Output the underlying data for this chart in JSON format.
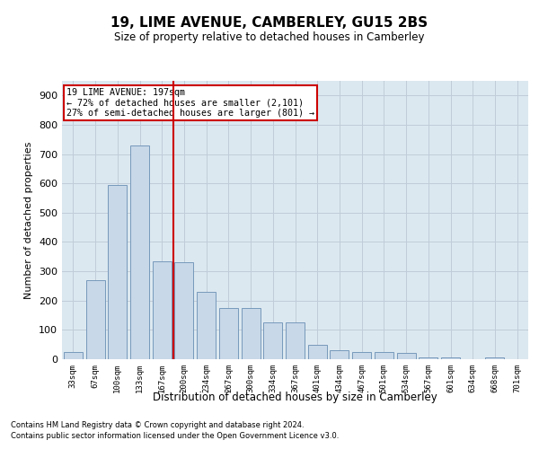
{
  "title": "19, LIME AVENUE, CAMBERLEY, GU15 2BS",
  "subtitle": "Size of property relative to detached houses in Camberley",
  "xlabel": "Distribution of detached houses by size in Camberley",
  "ylabel": "Number of detached properties",
  "categories": [
    "33sqm",
    "67sqm",
    "100sqm",
    "133sqm",
    "167sqm",
    "200sqm",
    "234sqm",
    "267sqm",
    "300sqm",
    "334sqm",
    "367sqm",
    "401sqm",
    "434sqm",
    "467sqm",
    "501sqm",
    "534sqm",
    "567sqm",
    "601sqm",
    "634sqm",
    "668sqm",
    "701sqm"
  ],
  "values": [
    25,
    270,
    595,
    730,
    335,
    330,
    230,
    175,
    175,
    125,
    125,
    50,
    30,
    25,
    25,
    20,
    5,
    5,
    0,
    5,
    0
  ],
  "bar_color": "#c8d8e8",
  "bar_edge_color": "#7799bb",
  "red_line_x": 4.5,
  "annotation_line1": "19 LIME AVENUE: 197sqm",
  "annotation_line2": "← 72% of detached houses are smaller (2,101)",
  "annotation_line3": "27% of semi-detached houses are larger (801) →",
  "annotation_box_color": "#cc0000",
  "ylim": [
    0,
    950
  ],
  "yticks": [
    0,
    100,
    200,
    300,
    400,
    500,
    600,
    700,
    800,
    900
  ],
  "grid_color": "#c0ccd8",
  "bg_color": "#dce8f0",
  "footnote1": "Contains HM Land Registry data © Crown copyright and database right 2024.",
  "footnote2": "Contains public sector information licensed under the Open Government Licence v3.0."
}
